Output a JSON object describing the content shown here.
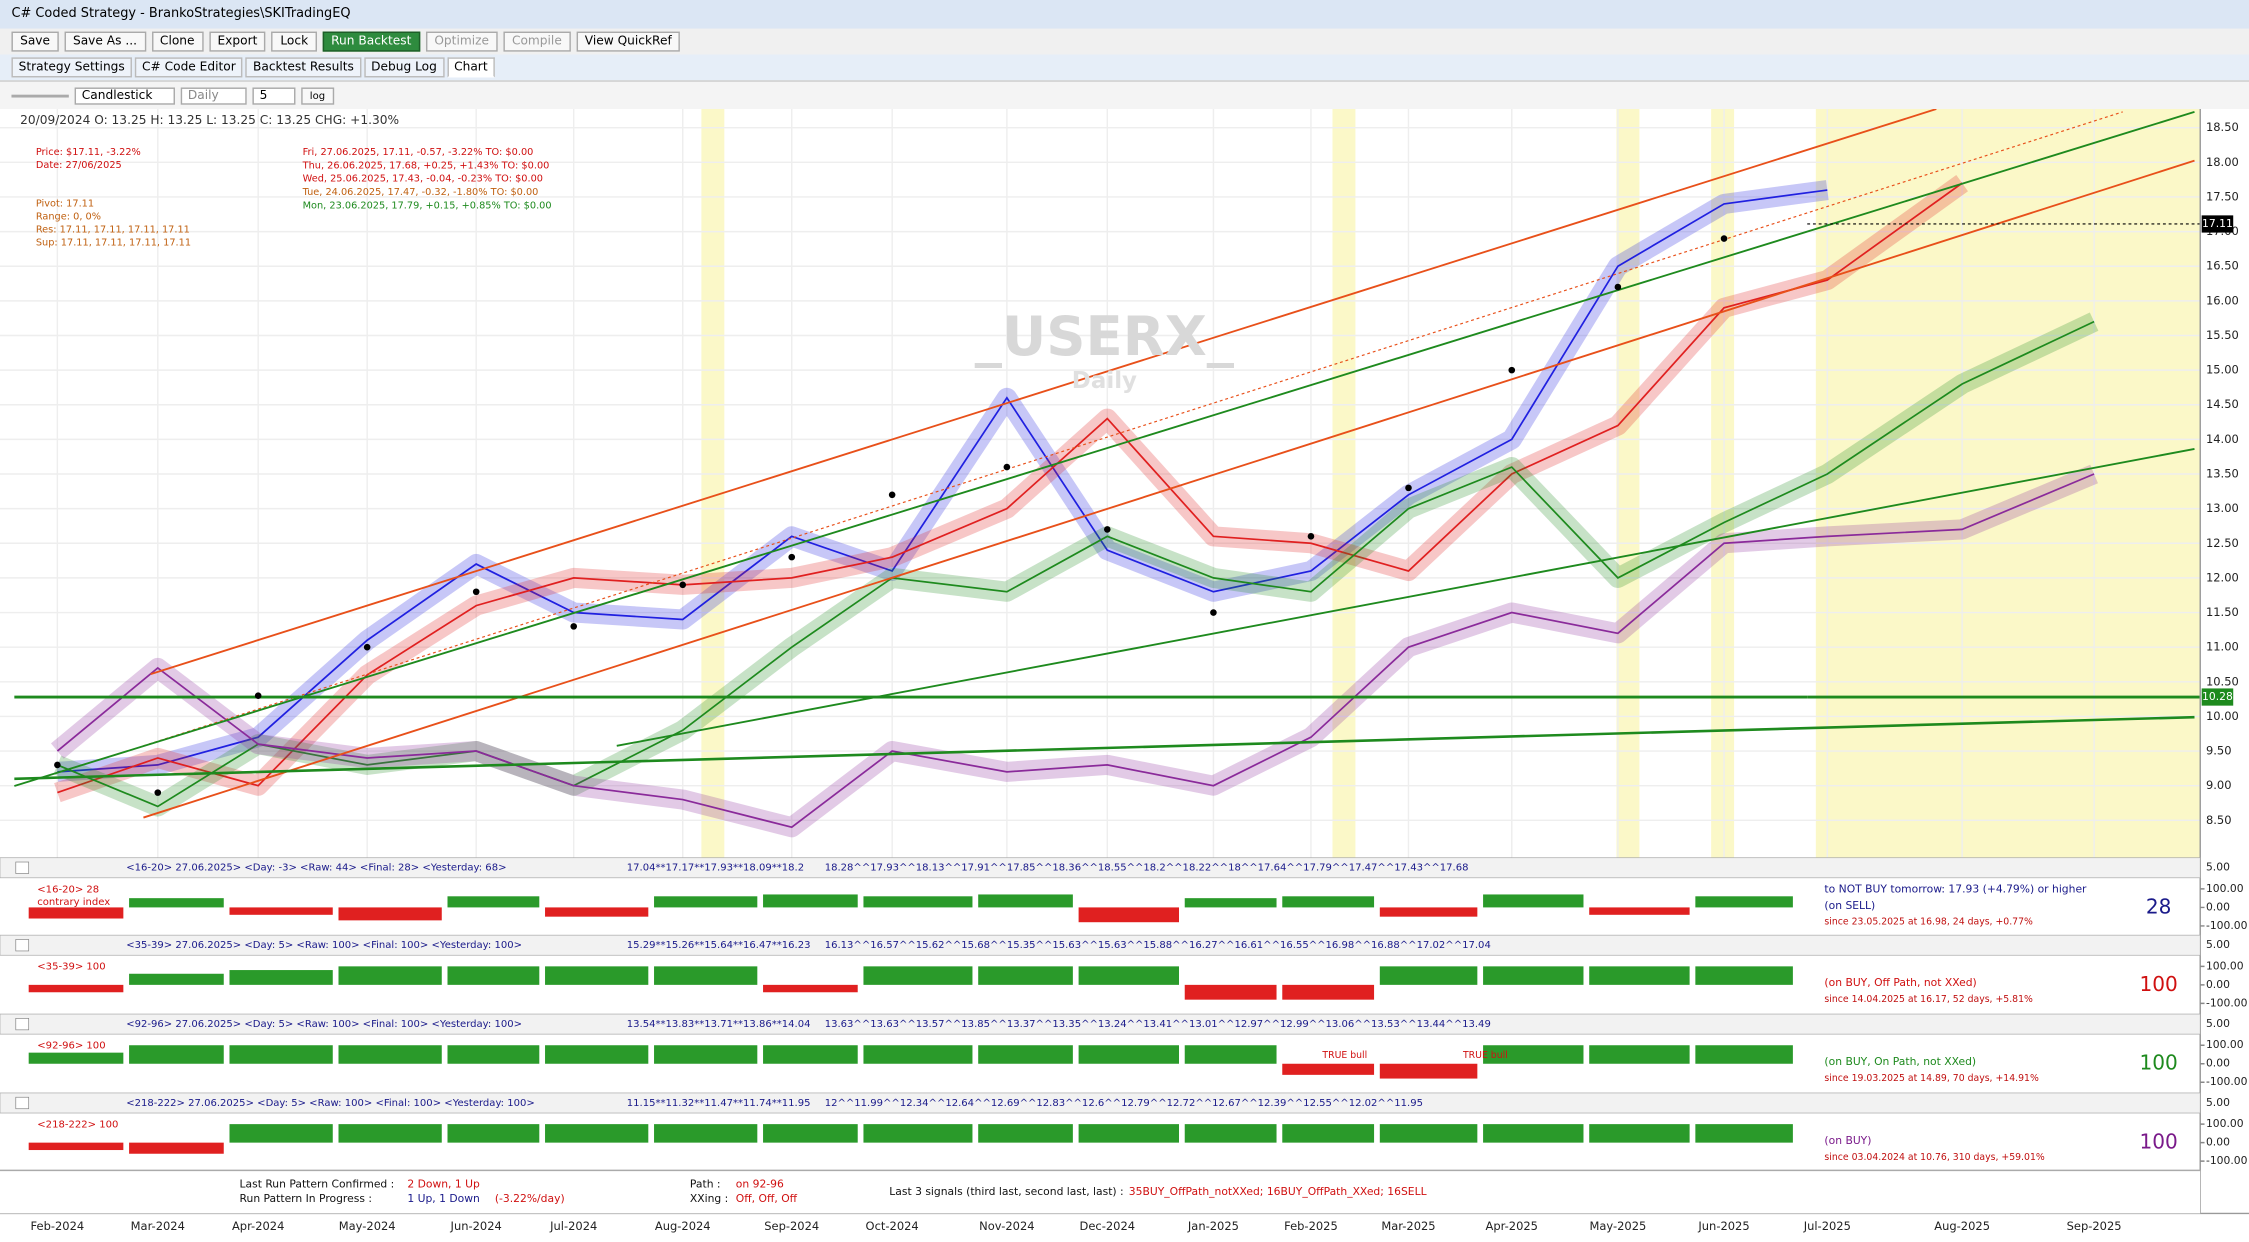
{
  "window": {
    "title": "C# Coded Strategy - BrankoStrategies\\SKITradingEQ"
  },
  "toolbar": [
    "Save",
    "Save As ...",
    "Clone",
    "Export",
    "Lock",
    "Run Backtest",
    "Optimize",
    "Compile",
    "View QuickRef"
  ],
  "tabs": [
    "Strategy Settings",
    "C# Code Editor",
    "Backtest Results",
    "Debug Log",
    "Chart"
  ],
  "chart_toolbar": {
    "style": "Candlestick",
    "period": "Daily",
    "count": "5",
    "log": "log"
  },
  "chart_data": {
    "type": "scatter",
    "header": "20/09/2024 O: 13.25 H: 13.25 L: 13.25 C: 13.25 CHG: +1.30%",
    "info_left": [
      "Price: $17.11, -3.22%",
      "Date: 27/06/2025",
      "Pivot: 17.11",
      "Range: 0, 0%",
      "Res: 17.11, 17.11, 17.11, 17.11",
      "Sup: 17.11, 17.11, 17.11, 17.11"
    ],
    "info_days": [
      "Fri, 27.06.2025, 17.11, -0.57, -3.22%  TO: $0.00",
      "Thu, 26.06.2025, 17.68, +0.25, +1.43%  TO: $0.00",
      "Wed, 25.06.2025, 17.43, -0.04, -0.23%  TO: $0.00",
      "Tue, 24.06.2025, 17.47, -0.32, -1.80%  TO: $0.00",
      "Mon, 23.06.2025, 17.79, +0.15, +0.85%  TO: $0.00"
    ],
    "watermark": "_USERX_",
    "watermark_sub": "Daily",
    "categories": [
      "Feb-2024",
      "Mar-2024",
      "Apr-2024",
      "May-2024",
      "Jun-2024",
      "Jul-2024",
      "Aug-2024",
      "Sep-2024",
      "Oct-2024",
      "Nov-2024",
      "Dec-2024",
      "Jan-2025",
      "Feb-2025",
      "Mar-2025",
      "Apr-2025",
      "May-2025",
      "Jun-2025",
      "Jul-2025",
      "Aug-2025",
      "Sep-2025"
    ],
    "values": [
      9.3,
      8.9,
      10.3,
      11.0,
      11.8,
      11.3,
      11.9,
      12.3,
      13.2,
      13.6,
      12.7,
      11.5,
      12.6,
      13.3,
      15.0,
      16.2,
      16.9,
      null,
      null,
      null
    ],
    "color": "#000000",
    "bands": [
      {
        "color": "#2020e0",
        "values": [
          9.2,
          9.3,
          9.7,
          11.1,
          12.2,
          11.5,
          11.4,
          12.6,
          12.1,
          14.6,
          12.4,
          11.8,
          12.1,
          13.2,
          14.0,
          16.5,
          17.4,
          17.6,
          null,
          null
        ]
      },
      {
        "color": "#e02020",
        "values": [
          8.9,
          9.4,
          9.0,
          10.6,
          11.6,
          12.0,
          11.9,
          12.0,
          12.3,
          13.0,
          14.3,
          12.6,
          12.5,
          12.1,
          13.5,
          14.2,
          15.9,
          16.3,
          17.7,
          null
        ]
      },
      {
        "color": "#1e8a1e",
        "values": [
          9.3,
          8.7,
          9.6,
          9.3,
          9.5,
          9.0,
          9.8,
          11.0,
          12.0,
          11.8,
          12.6,
          12.0,
          11.8,
          13.0,
          13.6,
          12.0,
          12.8,
          13.5,
          14.8,
          15.7
        ]
      },
      {
        "color": "#8a2a9a",
        "values": [
          9.5,
          10.7,
          9.6,
          9.4,
          9.5,
          9.0,
          8.8,
          8.4,
          9.5,
          9.2,
          9.3,
          9.0,
          9.7,
          11.0,
          11.5,
          11.2,
          12.5,
          12.6,
          12.7,
          13.5
        ]
      }
    ],
    "levels": [
      {
        "value": 17.11,
        "color": "#000000"
      },
      {
        "value": 10.28,
        "color": "#1e8a1e"
      }
    ],
    "ylim": [
      7.96,
      18.77
    ],
    "yticks": [
      {
        "value": 8.5,
        "label": "8.50"
      },
      {
        "value": 9,
        "label": "9.00"
      },
      {
        "value": 9.5,
        "label": "9.50"
      },
      {
        "value": 10,
        "label": "10.00"
      },
      {
        "value": 10.5,
        "label": "10.50"
      },
      {
        "value": 11,
        "label": "11.00"
      },
      {
        "value": 11.5,
        "label": "11.50"
      },
      {
        "value": 12,
        "label": "12.00"
      },
      {
        "value": 12.5,
        "label": "12.50"
      },
      {
        "value": 13,
        "label": "13.00"
      },
      {
        "value": 13.5,
        "label": "13.50"
      },
      {
        "value": 14,
        "label": "14.00"
      },
      {
        "value": 14.5,
        "label": "14.50"
      },
      {
        "value": 15,
        "label": "15.00"
      },
      {
        "value": 15.5,
        "label": "15.50"
      },
      {
        "value": 16,
        "label": "16.00"
      },
      {
        "value": 16.5,
        "label": "16.50"
      },
      {
        "value": 17,
        "label": "17.00"
      },
      {
        "value": 17.5,
        "label": "17.50"
      },
      {
        "value": 18,
        "label": "18.00"
      },
      {
        "value": 18.5,
        "label": "18.50"
      }
    ],
    "grid": true
  },
  "panels": [
    {
      "type": "bar",
      "label": "<16-20> 28",
      "sublabel": "contrary index",
      "header": "<16-20>  27.06.2025>   <Day: -3>   <Raw: 44>   <Final: 28>   <Yesterday: 68>",
      "prices_a": "17.04**17.17**17.93**18.09**18.2",
      "prices_b": "18.28^^17.93^^18.13^^17.91^^17.85^^18.36^^18.55^^18.2^^18.22^^18^^17.64^^17.79^^17.47^^17.43^^17.68",
      "signal": [
        "to NOT BUY tomorrow: 17.93 (+4.79%) or higher",
        "(on SELL)",
        "since 23.05.2025 at 16.98, 24 days, +0.77%"
      ],
      "score": "28",
      "color": "#1a1a8a",
      "annotations": [],
      "values": [
        -60,
        50,
        -40,
        -70,
        60,
        -50,
        60,
        70,
        60,
        70,
        -80,
        50,
        60,
        -50,
        70,
        -40,
        60,
        null,
        null,
        null
      ],
      "ylim": [
        -150,
        160
      ],
      "scale_top": "5.00",
      "yticks": [
        {
          "value": 100,
          "label": "100.00"
        },
        {
          "value": 0,
          "label": "0.00"
        },
        {
          "value": -100,
          "label": "-100.00"
        }
      ]
    },
    {
      "type": "bar",
      "label": "<35-39> 100",
      "sublabel": "",
      "header": "<35-39>  27.06.2025>   <Day: 5>   <Raw: 100>   <Final: 100>   <Yesterday: 100>",
      "prices_a": "15.29**15.26**15.64**16.47**16.23",
      "prices_b": "16.13^^16.57^^15.62^^15.68^^15.35^^15.63^^15.63^^15.88^^16.27^^16.61^^16.55^^16.98^^16.88^^17.02^^17.04",
      "signal": [
        "(on BUY, Off Path, not XXed)",
        "since 14.04.2025 at 16.17, 52 days, +5.81%"
      ],
      "score": "100",
      "color": "#d01010",
      "annotations": [],
      "values": [
        -40,
        60,
        80,
        100,
        100,
        100,
        100,
        -40,
        100,
        100,
        100,
        -80,
        -80,
        100,
        100,
        100,
        100,
        null,
        null,
        null
      ],
      "ylim": [
        -150,
        160
      ],
      "scale_top": "5.00",
      "yticks": [
        {
          "value": 100,
          "label": "100.00"
        },
        {
          "value": 0,
          "label": "0.00"
        },
        {
          "value": -100,
          "label": "-100.00"
        }
      ]
    },
    {
      "type": "bar",
      "label": "<92-96> 100",
      "sublabel": "",
      "header": "<92-96>  27.06.2025>   <Day: 5>   <Raw: 100>   <Final: 100>   <Yesterday: 100>",
      "prices_a": "13.54**13.83**13.71**13.86**14.04",
      "prices_b": "13.63^^13.63^^13.57^^13.85^^13.37^^13.35^^13.24^^13.41^^13.01^^12.97^^12.99^^13.06^^13.53^^13.44^^13.49",
      "signal": [
        "(on BUY, On Path, not XXed)",
        "since 19.03.2025 at 14.89, 70 days, +14.91%"
      ],
      "score": "100",
      "color": "#1e8a1e",
      "annotations": [
        "TRUE bull",
        "TRUE bull"
      ],
      "values": [
        60,
        100,
        100,
        100,
        100,
        100,
        100,
        100,
        100,
        100,
        100,
        100,
        -60,
        -80,
        100,
        100,
        100,
        null,
        null,
        null
      ],
      "ylim": [
        -150,
        160
      ],
      "scale_top": "5.00",
      "yticks": [
        {
          "value": 100,
          "label": "100.00"
        },
        {
          "value": 0,
          "label": "0.00"
        },
        {
          "value": -100,
          "label": "-100.00"
        }
      ]
    },
    {
      "type": "bar",
      "label": "<218-222> 100",
      "sublabel": "",
      "header": "<218-222>  27.06.2025>   <Day: 5>   <Raw: 100>   <Final: 100>   <Yesterday: 100>",
      "prices_a": "11.15**11.32**11.47**11.74**11.95",
      "prices_b": "12^^11.99^^12.34^^12.64^^12.69^^12.83^^12.6^^12.79^^12.72^^12.67^^12.39^^12.55^^12.02^^11.95",
      "signal": [
        "(on BUY)",
        "since 03.04.2024 at 10.76, 310 days, +59.01%"
      ],
      "score": "100",
      "color": "#7a1a8a",
      "annotations": [],
      "values": [
        -40,
        -60,
        100,
        100,
        100,
        100,
        100,
        100,
        100,
        100,
        100,
        100,
        100,
        100,
        100,
        100,
        100,
        null,
        null,
        null
      ],
      "ylim": [
        -150,
        160
      ],
      "scale_top": "5.00",
      "yticks": [
        {
          "value": 100,
          "label": "100.00"
        },
        {
          "value": 0,
          "label": "0.00"
        },
        {
          "value": -100,
          "label": "-100.00"
        }
      ]
    }
  ],
  "status": {
    "confirmed_label": "Last Run Pattern Confirmed :",
    "confirmed": "2 Down, 1 Up",
    "progress_label": "Run Pattern In Progress :",
    "progress": "1 Up, 1 Down",
    "progress_change": "(-3.22%/day)",
    "path_label": "Path :",
    "path": "on 92-96",
    "xxing_label": "XXing :",
    "xxing": "Off, Off, Off",
    "signals_label": "Last 3 signals (third last, second last, last) :",
    "signals": "35BUY_OffPath_notXXed;  16BUY_OffPath_XXed;  16SELL"
  }
}
